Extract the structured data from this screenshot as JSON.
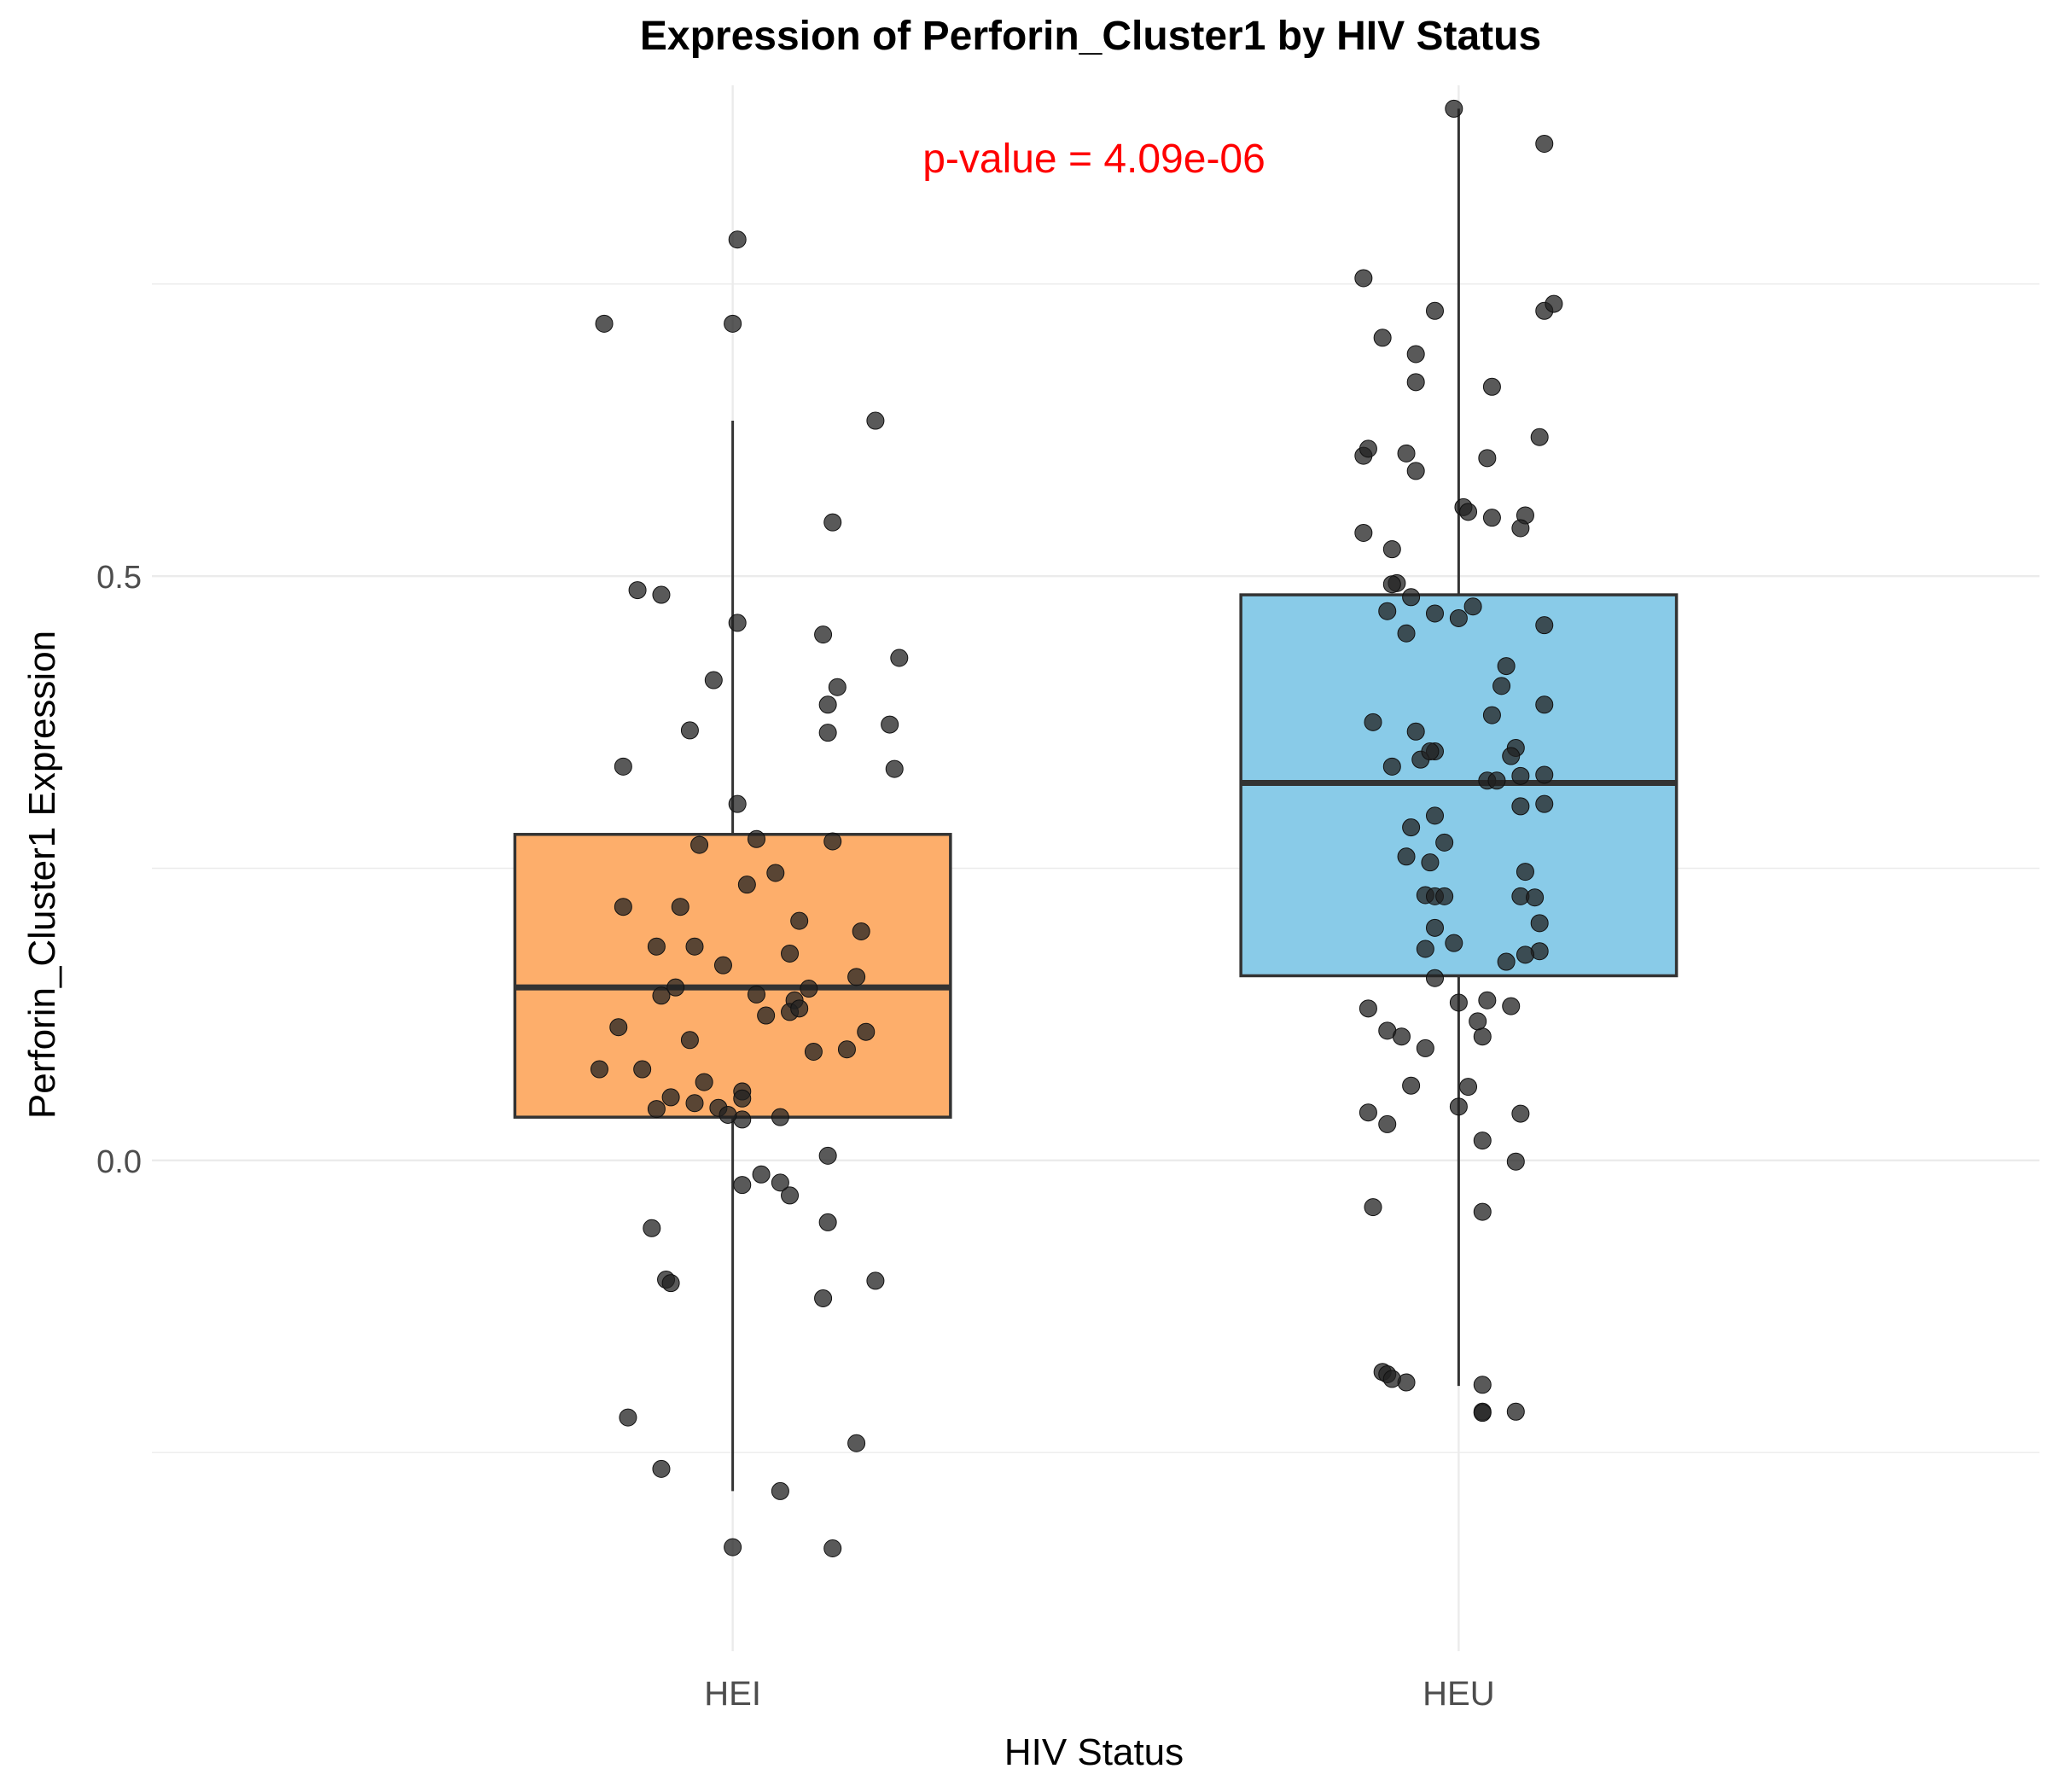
{
  "chart_data": {
    "type": "box",
    "title": "Expression of Perforin_Cluster1 by HIV Status",
    "xlabel": "HIV Status",
    "ylabel": "Perforin_Cluster1 Expression",
    "annotation": "p-value = 4.09e-06",
    "categories": [
      "HEI",
      "HEU"
    ],
    "y_ticks": [
      0.0,
      0.5
    ],
    "y_tick_labels": [
      "0.0",
      "0.5"
    ],
    "ylim": [
      -0.42,
      0.92
    ],
    "grid": true,
    "colors": {
      "HEI": "#FDAE6B",
      "HEU": "#89CBE8",
      "annotation": "#FF0000",
      "points": "#222222"
    },
    "boxes": [
      {
        "category": "HEI",
        "q1": 0.037,
        "median": 0.148,
        "q3": 0.279,
        "whisker_low": -0.283,
        "whisker_high": 0.633
      },
      {
        "category": "HEU",
        "q1": 0.158,
        "median": 0.323,
        "q3": 0.484,
        "whisker_low": -0.193,
        "whisker_high": 0.9
      }
    ],
    "points": [
      {
        "category": "HEI",
        "jitter": [
          0.01,
          -0.27,
          0.0,
          0.3,
          0.21,
          -0.2,
          -0.15,
          0.01,
          0.19,
          0.35,
          -0.04,
          0.22,
          0.2,
          0.33,
          -0.09,
          0.2,
          -0.23,
          0.34,
          0.01,
          0.05,
          0.21,
          -0.07,
          0.09,
          0.03,
          -0.23,
          -0.11,
          0.14,
          0.27,
          -0.16,
          -0.08,
          0.12,
          -0.02,
          0.26,
          -0.12,
          -0.15,
          0.05,
          0.13,
          0.16,
          0.07,
          -0.24,
          0.28,
          0.12,
          0.14,
          0.24,
          0.17,
          -0.09,
          -0.19,
          -0.28,
          -0.06,
          -0.13,
          -0.16,
          -0.08,
          0.02,
          0.02,
          -0.03,
          0.1,
          -0.01,
          0.02,
          0.2,
          0.06,
          0.12,
          0.1,
          0.02,
          0.2,
          -0.17,
          -0.14,
          0.3,
          -0.13,
          0.19,
          -0.22,
          -0.15,
          0.26,
          0.1,
          0.21,
          0.0
        ],
        "values": [
          0.788,
          0.716,
          0.716,
          0.633,
          0.546,
          0.488,
          0.484,
          0.46,
          0.45,
          0.43,
          0.411,
          0.405,
          0.39,
          0.373,
          0.368,
          0.366,
          0.337,
          0.335,
          0.305,
          0.275,
          0.273,
          0.27,
          0.246,
          0.236,
          0.217,
          0.217,
          0.205,
          0.196,
          0.183,
          0.183,
          0.177,
          0.167,
          0.157,
          0.148,
          0.141,
          0.142,
          0.137,
          0.147,
          0.124,
          0.114,
          0.11,
          0.127,
          0.13,
          0.095,
          0.093,
          0.103,
          0.078,
          0.078,
          0.067,
          0.054,
          0.044,
          0.049,
          0.059,
          0.035,
          0.045,
          0.037,
          0.039,
          0.053,
          0.004,
          -0.012,
          -0.03,
          -0.019,
          -0.021,
          -0.053,
          -0.058,
          -0.102,
          -0.103,
          -0.105,
          -0.118,
          -0.22,
          -0.264,
          -0.242,
          -0.283,
          -0.332,
          -0.331
        ]
      },
      {
        "category": "HEU",
        "jitter": [
          -0.01,
          0.18,
          -0.2,
          0.18,
          0.2,
          -0.05,
          -0.16,
          -0.09,
          -0.09,
          0.07,
          -0.2,
          -0.19,
          -0.11,
          0.17,
          0.06,
          -0.09,
          0.01,
          0.02,
          0.14,
          0.07,
          0.13,
          -0.2,
          -0.14,
          -0.13,
          -0.14,
          -0.1,
          0.03,
          -0.15,
          -0.05,
          0.0,
          0.18,
          -0.11,
          0.1,
          0.09,
          0.18,
          0.07,
          -0.18,
          -0.09,
          -0.05,
          -0.08,
          -0.06,
          0.12,
          0.11,
          -0.14,
          0.18,
          0.13,
          0.06,
          0.08,
          0.18,
          0.13,
          -0.05,
          -0.1,
          -0.03,
          -0.11,
          -0.06,
          0.14,
          0.13,
          -0.07,
          -0.05,
          -0.03,
          0.16,
          0.17,
          -0.05,
          -0.01,
          0.17,
          -0.07,
          0.14,
          0.1,
          -0.05,
          0.06,
          0.0,
          0.11,
          -0.19,
          -0.15,
          -0.12,
          0.05,
          0.04,
          -0.07,
          -0.1,
          0.02,
          0.0,
          0.13,
          -0.19,
          -0.15,
          0.05,
          0.12
        ],
        "values": [
          0.9,
          0.87,
          0.755,
          0.727,
          0.733,
          0.727,
          0.704,
          0.69,
          0.666,
          0.662,
          0.603,
          0.609,
          0.605,
          0.619,
          0.601,
          0.59,
          0.559,
          0.555,
          0.552,
          0.55,
          0.541,
          0.537,
          0.523,
          0.494,
          0.493,
          0.482,
          0.474,
          0.47,
          0.468,
          0.464,
          0.458,
          0.451,
          0.423,
          0.406,
          0.39,
          0.381,
          0.375,
          0.367,
          0.35,
          0.343,
          0.35,
          0.353,
          0.346,
          0.337,
          0.33,
          0.329,
          0.325,
          0.325,
          0.305,
          0.303,
          0.295,
          0.285,
          0.272,
          0.26,
          0.255,
          0.247,
          0.226,
          0.227,
          0.226,
          0.226,
          0.225,
          0.203,
          0.199,
          0.186,
          0.179,
          0.181,
          0.176,
          0.17,
          0.156,
          0.137,
          0.135,
          0.132,
          0.13,
          0.111,
          0.106,
          0.106,
          0.119,
          0.096,
          0.064,
          0.063,
          0.046,
          0.04,
          0.041,
          0.031,
          0.017,
          -0.001
        ]
      },
      {
        "category": "HEU",
        "jitter": [
          0.05,
          -0.18,
          0.05,
          -0.11,
          -0.16,
          -0.15,
          -0.14,
          0.05,
          0.12,
          0.05
        ],
        "values": [
          -0.044,
          -0.04,
          -0.192,
          -0.19,
          -0.181,
          -0.183,
          -0.187,
          -0.215,
          -0.215,
          -0.216
        ]
      }
    ]
  }
}
